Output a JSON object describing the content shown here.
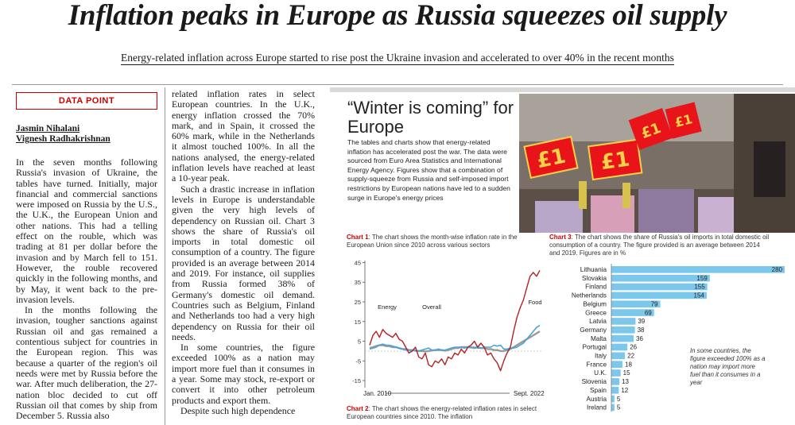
{
  "headline": "Inflation peaks in Europe as Russia squeezes oil supply",
  "standfirst": "Energy-related inflation across Europe started to rise post the Ukraine invasion and accelerated to over 40% in the recent months",
  "label": "DATA POINT",
  "bylines": [
    "Jasmin Nihalani",
    "Vignesh Radhakrishnan"
  ],
  "col1": [
    "In the seven months following Russia's invasion of Ukraine, the tables have turned. Initially, major financial and commercial sanctions were imposed on Russia by the U.S., the U.K., the European Union and other nations. This had a telling effect on the rouble, which was trading at 81 per dollar before the invasion and by March fell to 151. However, the rouble recovered quickly in the following months, and by May, it went back to the pre-invasion levels.",
    "In the months following the invasion, tougher sanctions against Russian oil and gas remained a contentious subject for countries in the European region. This was because a quarter of the region's oil needs were met by Russia before the war. After much deliberation, the 27-nation bloc decided to cut off Russian oil that comes by ship from December 5. Russia also"
  ],
  "col2": [
    "related inflation rates in select European countries. In the U.K., energy inflation crossed the 70% mark, and in Spain, it crossed the 60% mark, while in the Netherlands it almost touched 100%. In all the nations analysed, the energy-related inflation levels have reached at least a 10-year peak.",
    "Such a drastic increase in inflation levels in Europe is understandable given the very high levels of dependency on Russian oil. Chart 3 shows the share of Russia's oil imports in total domestic oil consumption of a country. The figure provided is an average between 2014 and 2019. For instance, oil supplies from Russia formed 38% of Germany's domestic oil demand. Countries such as Belgium, Finland and Netherlands too had a very high dependency on Russia for their oil needs.",
    "In some countries, the figure exceeded 100% as a nation may import more fuel than it consumes in a year. Some may stock, re-export or convert it into other petroleum products and export them.",
    "Despite such high dependence"
  ],
  "box": {
    "title": "“Winter is coming” for Europe",
    "text": "The tables and charts show that energy-related inflation has accelerated post the war. The data were sourced from Euro Area Statistics and International Energy Agency. Figures show that a combination of supply-squeeze from Russia and self-imposed import restrictions by European nations have led to a sudden surge in Europe's energy prices"
  },
  "chart1_caption": {
    "label": "Chart 1",
    "text": ": The chart shows the month-wise inflation rate in the European Union since 2010 across various sectors"
  },
  "chart3_caption": {
    "label": "Chart 3",
    "text": ": The chart shows the share of Russia's oil imports in total domestic oil consumption of a country. The figure provided is an average between 2014 and 2019. Figures are in %"
  },
  "chart2_caption": {
    "label": "Chart 2",
    "text": ": The chart shows the energy-related inflation rates in select European countries since 2010. The inflation"
  },
  "chart1_extra": {
    "start": "Jan. 2010",
    "end": "Sept. 2022"
  },
  "chart3_note": "In some countries, the figure exceeded 100% as a nation may import more fuel than it consumes in a year",
  "colors": {
    "accent": "#c00000",
    "bar": "#7cc7ec",
    "energy": "#b22222",
    "overall": "#9a9a9a",
    "food": "#4aa3d6"
  },
  "chart_data": [
    {
      "type": "line",
      "yticks": [
        45,
        35,
        25,
        15,
        5,
        -5,
        -15
      ],
      "ylim": [
        -17,
        46
      ],
      "x_start": "Jan. 2010",
      "x_end": "Sept. 2022",
      "series": [
        {
          "name": "Energy",
          "values": [
            3,
            8,
            10,
            7,
            11,
            9,
            8,
            7,
            9,
            6,
            5,
            2,
            -1,
            0,
            2,
            -3,
            -4,
            -1,
            -7,
            -8,
            -5,
            -6,
            -4,
            -7,
            -3,
            -4,
            -1,
            -2,
            1,
            -1,
            2,
            3,
            5,
            2,
            4,
            2,
            -2,
            -1,
            -4,
            -6,
            -10,
            -5,
            -1,
            2,
            10,
            17,
            22,
            26,
            32,
            38,
            40,
            38,
            41
          ]
        },
        {
          "name": "Overall",
          "values": [
            1.5,
            2,
            2.5,
            3,
            3,
            2.5,
            2.5,
            2,
            2,
            1.5,
            1,
            1,
            0.5,
            0.5,
            0.3,
            0,
            0,
            -0.2,
            0,
            0.3,
            0.5,
            0.5,
            0.5,
            0.2,
            0.5,
            1,
            1.5,
            1.5,
            2,
            2,
            2,
            1.8,
            1.5,
            2,
            1.5,
            1.5,
            1,
            1,
            0.5,
            0.5,
            0,
            0,
            0.5,
            1,
            2,
            3,
            4,
            5,
            6,
            7,
            8,
            9,
            10
          ]
        },
        {
          "name": "Food",
          "values": [
            1,
            1.5,
            2,
            3,
            3.5,
            3,
            3,
            2.5,
            2,
            1.5,
            1,
            0.5,
            0.5,
            0.5,
            0,
            0,
            0.5,
            1,
            1.5,
            0.5,
            0.5,
            1,
            0.5,
            0.5,
            1,
            1.5,
            2,
            2,
            2,
            1.5,
            2,
            2,
            2,
            1.5,
            1.5,
            2,
            2,
            2,
            3,
            2.5,
            3,
            1,
            1,
            1.5,
            1.5,
            2,
            3,
            4,
            6,
            8,
            10,
            12,
            13
          ]
        }
      ]
    },
    {
      "type": "bar",
      "categories": [
        "Lithuania",
        "Slovakia",
        "Finland",
        "Netherlands",
        "Belgium",
        "Greece",
        "Latvia",
        "Germany",
        "Malta",
        "Portugal",
        "Italy",
        "France",
        "U.K.",
        "Slovenia",
        "Spain",
        "Austria",
        "Ireland"
      ],
      "values": [
        280,
        159,
        155,
        154,
        79,
        69,
        39,
        38,
        36,
        26,
        22,
        18,
        15,
        13,
        12,
        5,
        5
      ],
      "xlim": [
        0,
        280
      ]
    }
  ]
}
